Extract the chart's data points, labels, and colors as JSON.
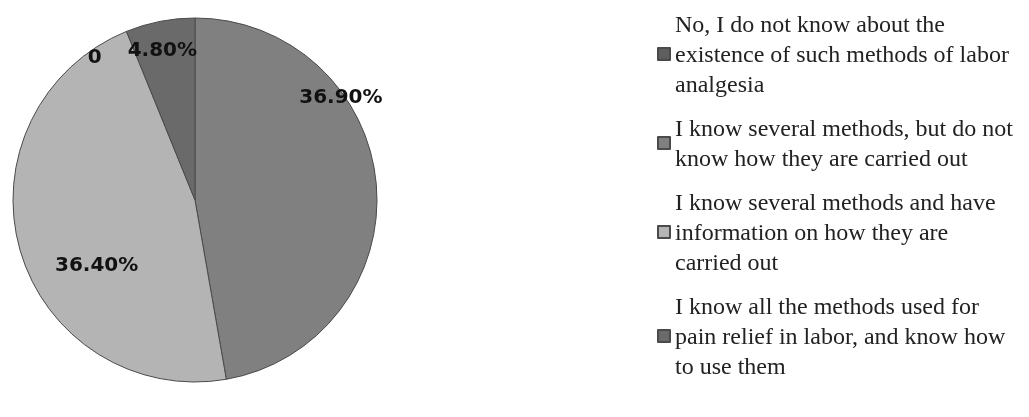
{
  "chart_data": {
    "type": "pie",
    "categories": [
      "No, I do not know about the existence of such methods of labor analgesia",
      "I know several methods, but do not know how they are carried out",
      "I know several methods and have information on how they are carried out",
      "I know all the methods used for pain relief in labor, and know how to use them"
    ],
    "values": [
      0,
      36.9,
      36.4,
      4.8
    ],
    "colors": [
      "#5e5e5e",
      "#808080",
      "#b4b4b4",
      "#6a6a6a"
    ],
    "value_labels": [
      "0",
      "36.90%",
      "36.40%",
      "4.80%"
    ],
    "legend": "right"
  }
}
